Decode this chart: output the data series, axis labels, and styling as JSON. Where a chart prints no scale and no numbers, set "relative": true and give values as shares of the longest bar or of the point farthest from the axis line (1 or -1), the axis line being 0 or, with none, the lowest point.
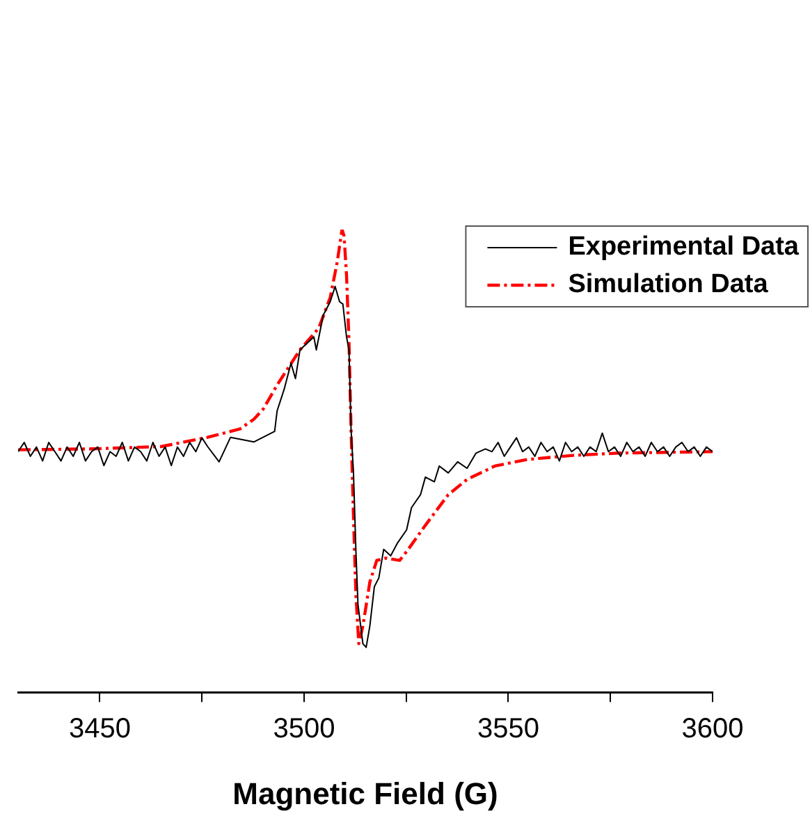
{
  "chart_data": {
    "type": "line",
    "relative": true,
    "xlabel": "Magnetic Field (G)",
    "xlim": [
      3430,
      3600
    ],
    "xticks": [
      3450,
      {
        "value": 3475,
        "label": null
      },
      3500,
      {
        "value": 3525,
        "label": null
      },
      3550,
      {
        "value": 3575,
        "label": null
      },
      3600
    ],
    "grid": false,
    "legend": "top right",
    "marker": "none",
    "series": [
      {
        "name": "Experimental Data",
        "color": "#000000",
        "line_style": "solid",
        "x": [
          3430,
          3431.5,
          3433,
          3434.5,
          3436,
          3437.5,
          3439,
          3440.5,
          3442,
          3443.5,
          3445,
          3446.5,
          3448,
          3449.5,
          3451,
          3452.5,
          3454,
          3455.5,
          3457,
          3458.5,
          3460,
          3461.5,
          3463,
          3464.5,
          3466,
          3467.5,
          3469,
          3470.5,
          3472,
          3473.5,
          3475,
          3476.4,
          3479.2,
          3482,
          3487.7,
          3492.8,
          3493.4,
          3495.1,
          3496.8,
          3497.9,
          3499,
          3502.4,
          3503,
          3504.7,
          3506.4,
          3507.6,
          3508.7,
          3509.5,
          3510.4,
          3511,
          3511.5,
          3512.1,
          3512.7,
          3513.2,
          3514.4,
          3515.2,
          3516.1,
          3517.2,
          3518.3,
          3519.5,
          3521.2,
          3522.9,
          3525.1,
          3526.3,
          3528.5,
          3529.7,
          3531.9,
          3533.1,
          3535.3,
          3537.6,
          3539.9,
          3542.1,
          3544.4,
          3546,
          3547.5,
          3549,
          3550.5,
          3552,
          3553.5,
          3555,
          3556.5,
          3558,
          3559.5,
          3561,
          3562.5,
          3564,
          3565.5,
          3567,
          3568.5,
          3570,
          3571.5,
          3573,
          3574.5,
          3576,
          3577.5,
          3579,
          3580.5,
          3582,
          3583.5,
          3585,
          3586.5,
          3588,
          3589.5,
          3591,
          3592.5,
          3594,
          3595.5,
          3597,
          3598.5,
          3600
        ],
        "values": [
          0.52,
          0.54,
          0.51,
          0.53,
          0.5,
          0.54,
          0.52,
          0.5,
          0.53,
          0.51,
          0.54,
          0.5,
          0.52,
          0.53,
          0.49,
          0.52,
          0.51,
          0.54,
          0.5,
          0.53,
          0.52,
          0.5,
          0.54,
          0.51,
          0.53,
          0.49,
          0.53,
          0.51,
          0.54,
          0.52,
          0.55,
          0.531,
          0.498,
          0.551,
          0.541,
          0.564,
          0.608,
          0.654,
          0.711,
          0.678,
          0.74,
          0.768,
          0.74,
          0.815,
          0.844,
          0.877,
          0.844,
          0.839,
          0.768,
          0.74,
          0.569,
          0.474,
          0.304,
          0.19,
          0.105,
          0.097,
          0.143,
          0.228,
          0.247,
          0.309,
          0.295,
          0.323,
          0.351,
          0.399,
          0.427,
          0.465,
          0.455,
          0.489,
          0.474,
          0.498,
          0.484,
          0.517,
          0.526,
          0.52,
          0.54,
          0.51,
          0.53,
          0.55,
          0.52,
          0.53,
          0.51,
          0.54,
          0.52,
          0.53,
          0.5,
          0.54,
          0.52,
          0.53,
          0.51,
          0.53,
          0.52,
          0.56,
          0.52,
          0.53,
          0.51,
          0.54,
          0.52,
          0.53,
          0.51,
          0.54,
          0.52,
          0.53,
          0.51,
          0.53,
          0.54,
          0.52,
          0.53,
          0.51,
          0.53,
          0.52
        ]
      },
      {
        "name": "Simulation Data",
        "color": "#ff0000",
        "line_style": "dashed",
        "x": [
          3430,
          3448,
          3465,
          3476.4,
          3484.3,
          3487.7,
          3490,
          3493.4,
          3499,
          3503.6,
          3506.4,
          3508.1,
          3509.3,
          3509.8,
          3510.4,
          3511,
          3511.5,
          3512.1,
          3512.7,
          3513.4,
          3514.4,
          3516.1,
          3517.8,
          3520,
          3523.4,
          3525.1,
          3529.7,
          3535.3,
          3539.9,
          3544.4,
          3546.7,
          3554.6,
          3565.9,
          3577.3,
          3600
        ],
        "values": [
          0.524,
          0.526,
          0.531,
          0.551,
          0.569,
          0.59,
          0.612,
          0.664,
          0.74,
          0.787,
          0.853,
          0.929,
          1,
          0.986,
          0.901,
          0.759,
          0.569,
          0.38,
          0.209,
          0.105,
          0.143,
          0.238,
          0.285,
          0.29,
          0.285,
          0.304,
          0.361,
          0.427,
          0.46,
          0.479,
          0.489,
          0.503,
          0.512,
          0.517,
          0.52
        ]
      }
    ]
  }
}
